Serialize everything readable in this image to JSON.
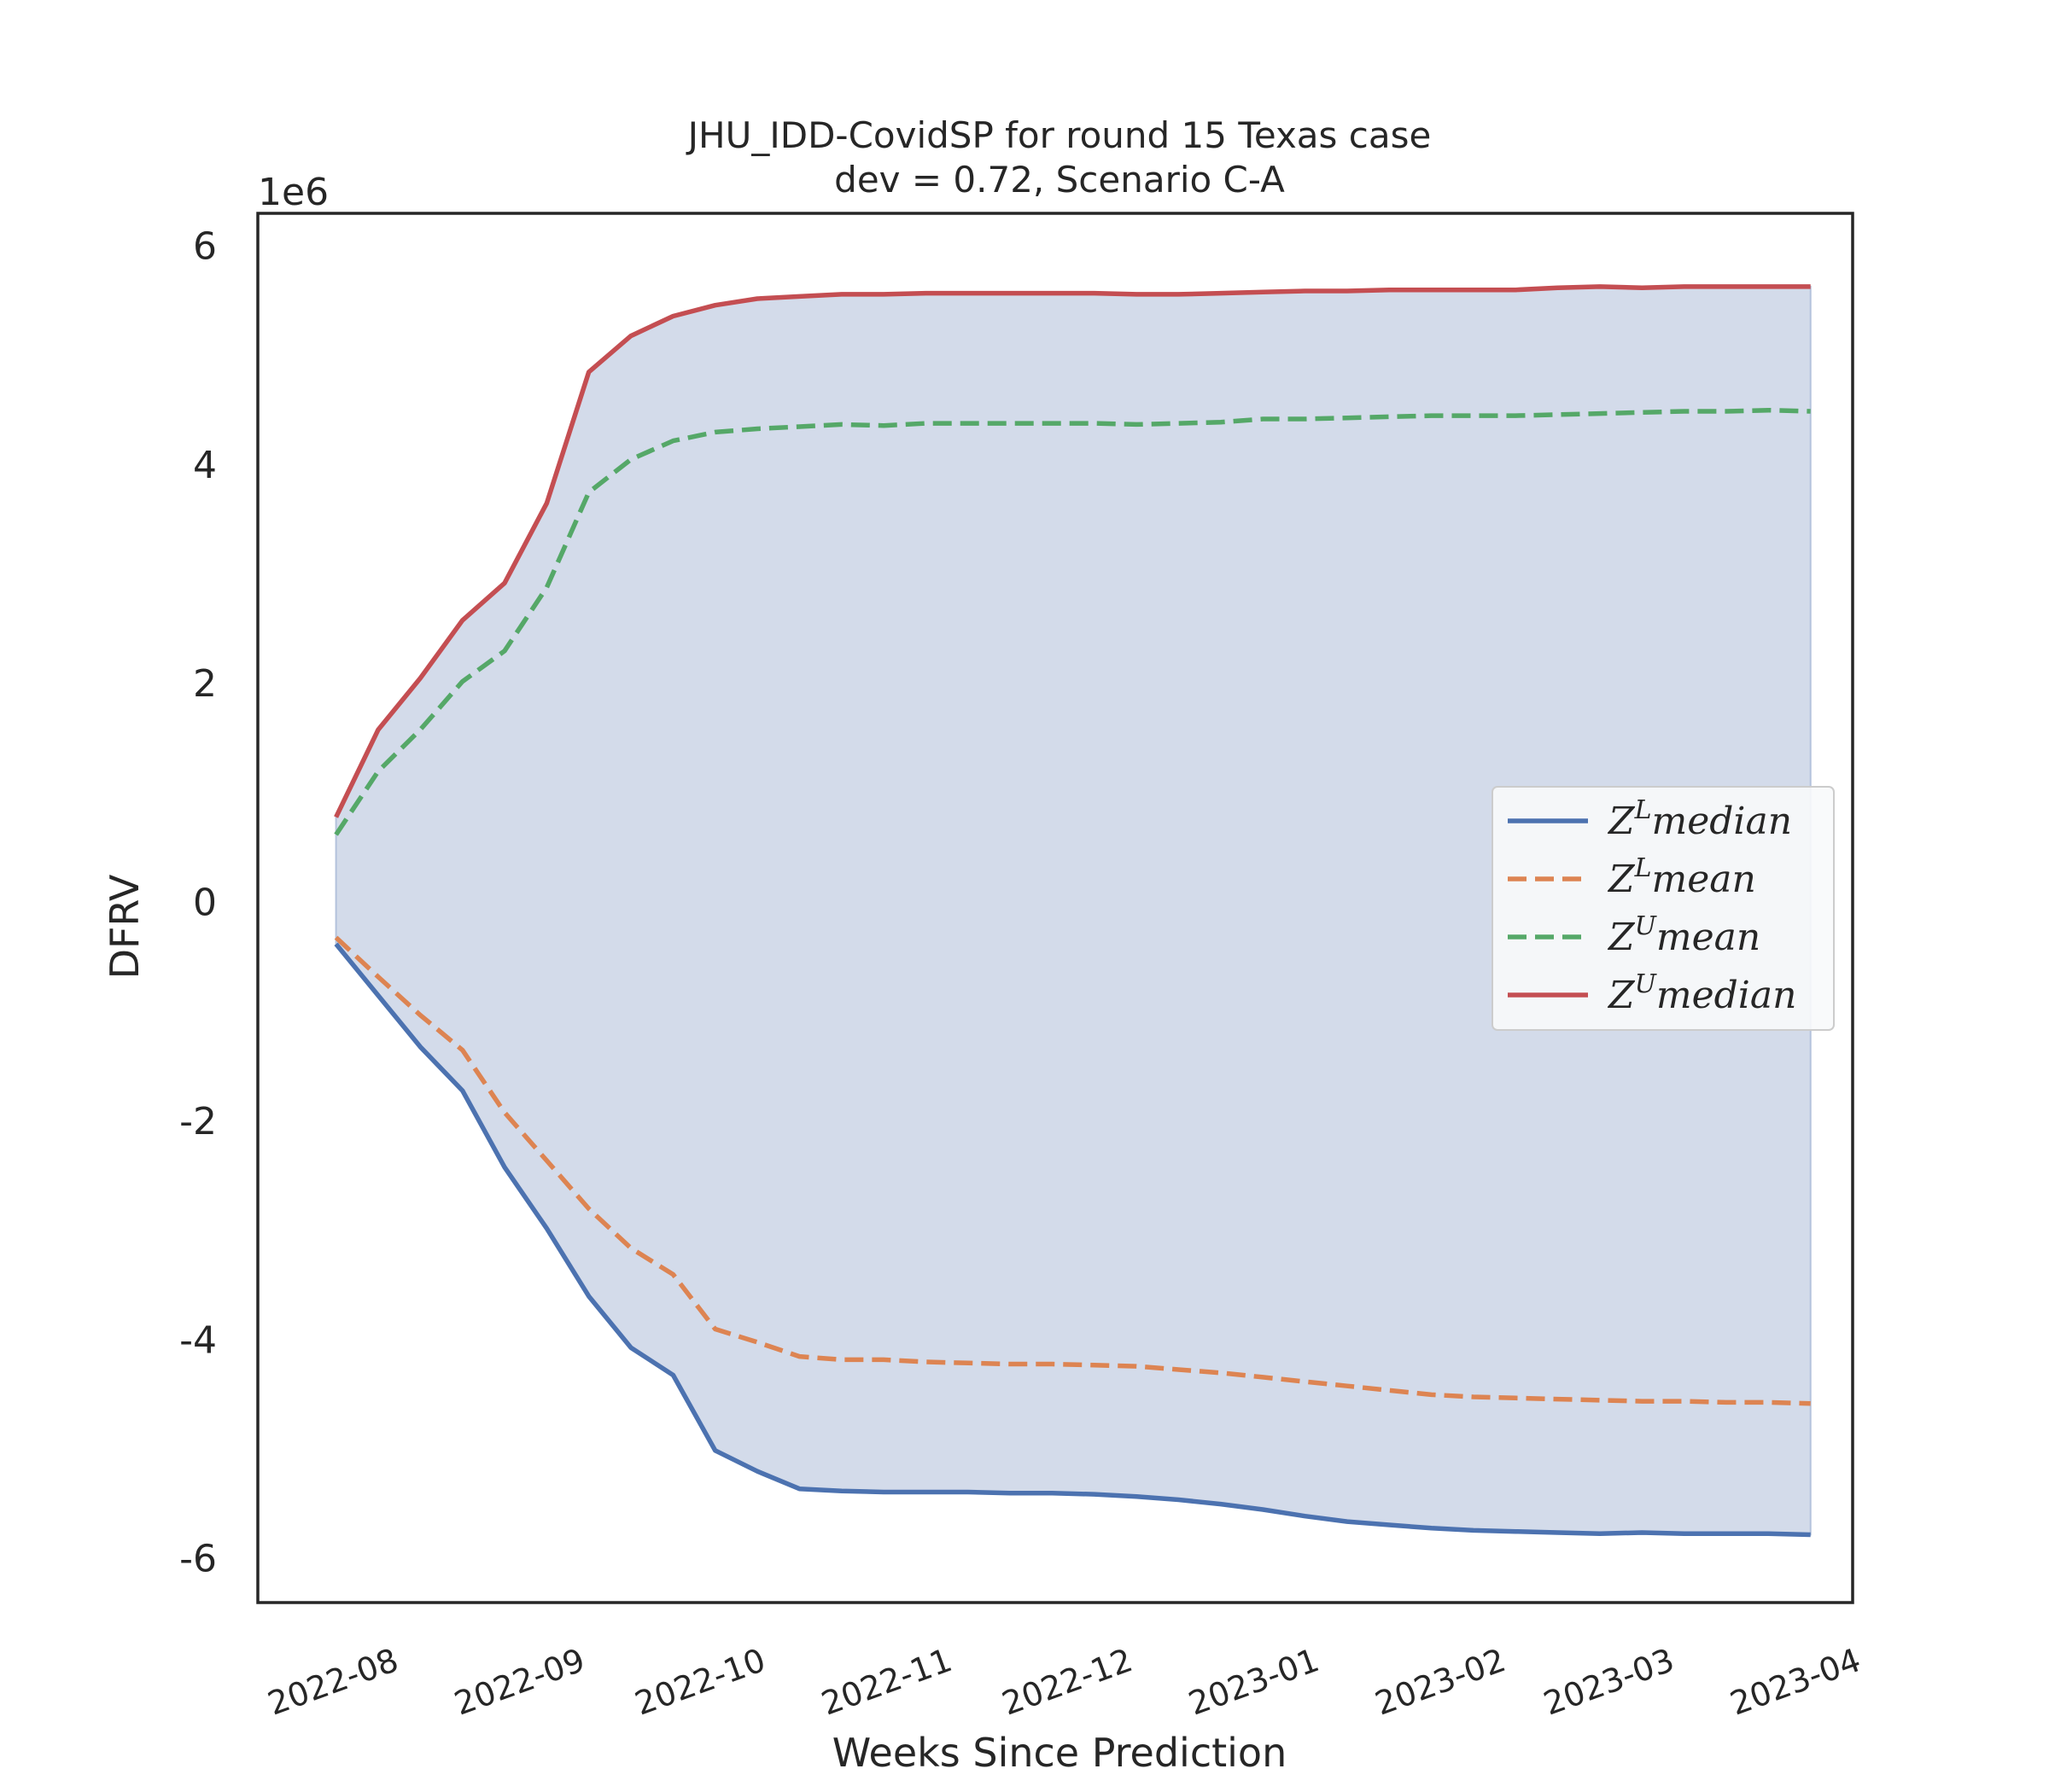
{
  "chart_data": {
    "type": "line",
    "title": "JHU_IDD-CovidSP for round 15 Texas case",
    "subtitle": "dev = 0.72, Scenario C-A",
    "xlabel": "Weeks Since Prediction",
    "ylabel": "DFRV",
    "y_offset_label": "1e6",
    "ylim": [
      -6.4,
      6.3
    ],
    "yticks": [
      -6,
      -4,
      -2,
      0,
      2,
      4,
      6
    ],
    "ytick_labels": [
      "-6",
      "-4",
      "-2",
      "0",
      "2",
      "4",
      "6"
    ],
    "xlim": [
      "2022-07-10",
      "2023-04-01"
    ],
    "xticks": [
      "2022-08-01",
      "2022-09-01",
      "2022-10-01",
      "2022-11-01",
      "2022-12-01",
      "2023-01-01",
      "2023-02-01",
      "2023-03-01",
      "2023-04-01"
    ],
    "xtick_labels": [
      "2022-08",
      "2022-09",
      "2022-10",
      "2022-11",
      "2022-12",
      "2023-01",
      "2023-02",
      "2023-03",
      "2023-04"
    ],
    "grid": false,
    "legend_position": "center-right",
    "fill_between": {
      "upper": "Z^U median",
      "lower": "Z^L median",
      "color": "#d3dbea"
    },
    "x": [
      "2022-07-23",
      "2022-07-30",
      "2022-08-06",
      "2022-08-13",
      "2022-08-20",
      "2022-08-27",
      "2022-09-03",
      "2022-09-10",
      "2022-09-17",
      "2022-09-24",
      "2022-10-01",
      "2022-10-08",
      "2022-10-15",
      "2022-10-22",
      "2022-10-29",
      "2022-11-05",
      "2022-11-12",
      "2022-11-19",
      "2022-11-26",
      "2022-12-03",
      "2022-12-10",
      "2022-12-17",
      "2022-12-24",
      "2022-12-31",
      "2023-01-07",
      "2023-01-14",
      "2023-01-21",
      "2023-01-28",
      "2023-02-04",
      "2023-02-11",
      "2023-02-18",
      "2023-02-25",
      "2023-03-04",
      "2023-03-11",
      "2023-03-18",
      "2023-03-25"
    ],
    "series": [
      {
        "name": "Z^L median",
        "legend_base": "Z",
        "legend_sup": "L",
        "legend_suffix": "median",
        "color": "#4c72b0",
        "dash": "solid",
        "values": [
          -0.38,
          -0.85,
          -1.32,
          -1.72,
          -2.42,
          -2.98,
          -3.6,
          -4.07,
          -4.32,
          -5.01,
          -5.2,
          -5.36,
          -5.38,
          -5.39,
          -5.39,
          -5.39,
          -5.4,
          -5.4,
          -5.41,
          -5.43,
          -5.46,
          -5.5,
          -5.55,
          -5.61,
          -5.66,
          -5.69,
          -5.72,
          -5.74,
          -5.75,
          -5.76,
          -5.77,
          -5.76,
          -5.77,
          -5.77,
          -5.77,
          -5.78
        ]
      },
      {
        "name": "Z^L mean",
        "legend_base": "Z",
        "legend_sup": "L",
        "legend_suffix": "mean",
        "color": "#dd8452",
        "dash": "dashed",
        "values": [
          -0.32,
          -0.68,
          -1.03,
          -1.35,
          -1.92,
          -2.36,
          -2.8,
          -3.16,
          -3.4,
          -3.9,
          -4.02,
          -4.15,
          -4.18,
          -4.18,
          -4.2,
          -4.21,
          -4.22,
          -4.22,
          -4.23,
          -4.24,
          -4.27,
          -4.3,
          -4.34,
          -4.38,
          -4.42,
          -4.46,
          -4.5,
          -4.52,
          -4.53,
          -4.54,
          -4.55,
          -4.56,
          -4.56,
          -4.57,
          -4.57,
          -4.58
        ]
      },
      {
        "name": "Z^U mean",
        "legend_base": "Z",
        "legend_sup": "U",
        "legend_suffix": "mean",
        "color": "#55a868",
        "dash": "dashed",
        "values": [
          0.62,
          1.2,
          1.58,
          2.02,
          2.3,
          2.88,
          3.75,
          4.05,
          4.22,
          4.3,
          4.33,
          4.35,
          4.37,
          4.36,
          4.38,
          4.38,
          4.38,
          4.38,
          4.38,
          4.37,
          4.38,
          4.39,
          4.42,
          4.42,
          4.43,
          4.44,
          4.45,
          4.45,
          4.45,
          4.46,
          4.47,
          4.48,
          4.49,
          4.49,
          4.5,
          4.49
        ]
      },
      {
        "name": "Z^U median",
        "legend_base": "Z",
        "legend_sup": "U",
        "legend_suffix": "median",
        "color": "#c44e52",
        "dash": "solid",
        "values": [
          0.78,
          1.58,
          2.05,
          2.58,
          2.92,
          3.65,
          4.85,
          5.18,
          5.36,
          5.46,
          5.52,
          5.54,
          5.56,
          5.56,
          5.57,
          5.57,
          5.57,
          5.57,
          5.57,
          5.56,
          5.56,
          5.57,
          5.58,
          5.59,
          5.59,
          5.6,
          5.6,
          5.6,
          5.6,
          5.62,
          5.63,
          5.62,
          5.63,
          5.63,
          5.63,
          5.63
        ]
      }
    ]
  }
}
